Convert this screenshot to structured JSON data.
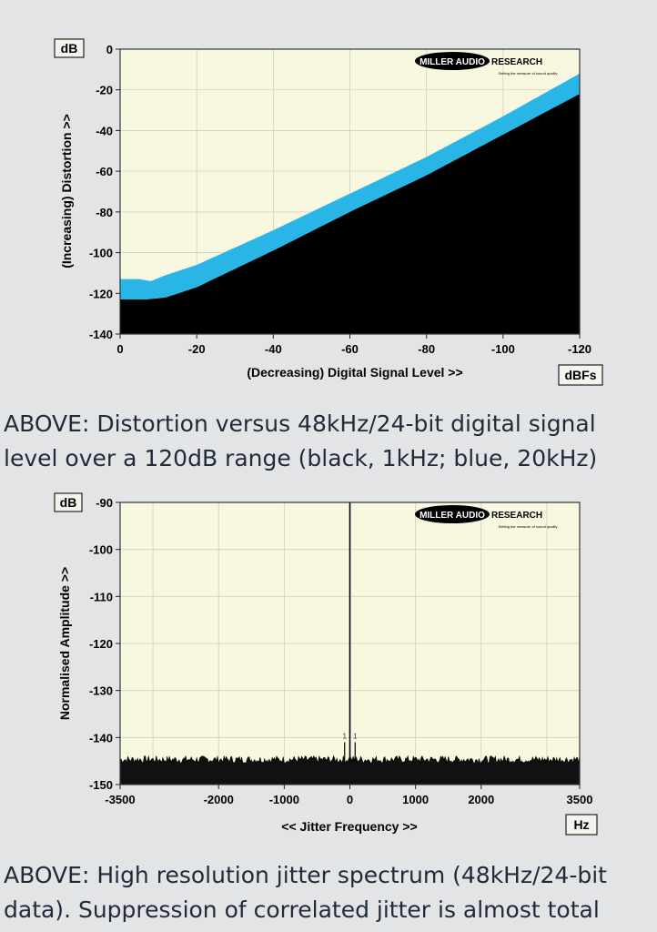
{
  "chart_data": [
    {
      "type": "area",
      "unit_box": "dB",
      "x_unit_box": "dBFs",
      "xlabel": "(Decreasing) Digital Signal Level >>",
      "ylabel": "(Increasing) Distortion >>",
      "xlim": [
        0,
        -120
      ],
      "ylim": [
        -140,
        0
      ],
      "x_ticks": [
        0,
        -20,
        -40,
        -60,
        -80,
        -100,
        -120
      ],
      "y_ticks": [
        0,
        -20,
        -40,
        -60,
        -80,
        -100,
        -120,
        -140
      ],
      "logo": {
        "brand_left": "MILLER AUDIO",
        "brand_right": "RESEARCH",
        "tagline": "Setting the measure of sound quality"
      },
      "colors": {
        "plot_bg": "#f8f8e1",
        "black_series": "#000000",
        "blue_series": "#29b6e6"
      },
      "series": [
        {
          "name": "1kHz",
          "color": "black",
          "x": [
            0,
            -7,
            -12,
            -20,
            -40,
            -60,
            -80,
            -100,
            -120
          ],
          "y": [
            -123,
            -123,
            -122,
            -117,
            -99,
            -80,
            -62,
            -42,
            -22
          ]
        },
        {
          "name": "20kHz",
          "color": "blue",
          "x": [
            0,
            -5,
            -8,
            -12,
            -20,
            -40,
            -60,
            -80,
            -100,
            -120
          ],
          "y": [
            -113,
            -113,
            -114,
            -111,
            -106,
            -89,
            -71,
            -53,
            -33,
            -12
          ]
        }
      ]
    },
    {
      "type": "line",
      "unit_box": "dB",
      "x_unit_box": "Hz",
      "xlabel": "<< Jitter Frequency >>",
      "ylabel": "Normalised Amplitude >>",
      "xlim": [
        -3500,
        3500
      ],
      "ylim": [
        -150,
        -90
      ],
      "x_ticks": [
        -3500,
        -2000,
        -1000,
        0,
        1000,
        2000,
        3500
      ],
      "y_ticks": [
        -90,
        -100,
        -110,
        -120,
        -130,
        -140,
        -150
      ],
      "logo": {
        "brand_left": "MILLER AUDIO",
        "brand_right": "RESEARCH",
        "tagline": "Setting the measure of sound quality"
      },
      "colors": {
        "plot_bg": "#f8f8e1",
        "trace": "#000000"
      },
      "noise_floor_db": -145,
      "peaks": [
        {
          "x": 0,
          "y": -90,
          "label": ""
        },
        {
          "x": -80,
          "y": -141,
          "label": "1"
        },
        {
          "x": 80,
          "y": -141,
          "label": "1"
        }
      ]
    }
  ],
  "captions": {
    "caption1_line1": "ABOVE: Distortion versus 48kHz/24-bit digital signal",
    "caption1_line2": "level over a 120dB range (black, 1kHz; blue, 20kHz)",
    "caption2_line1": "ABOVE: High resolution jitter spectrum (48kHz/24-bit",
    "caption2_line2": "data). Suppression of correlated jitter is almost total"
  }
}
